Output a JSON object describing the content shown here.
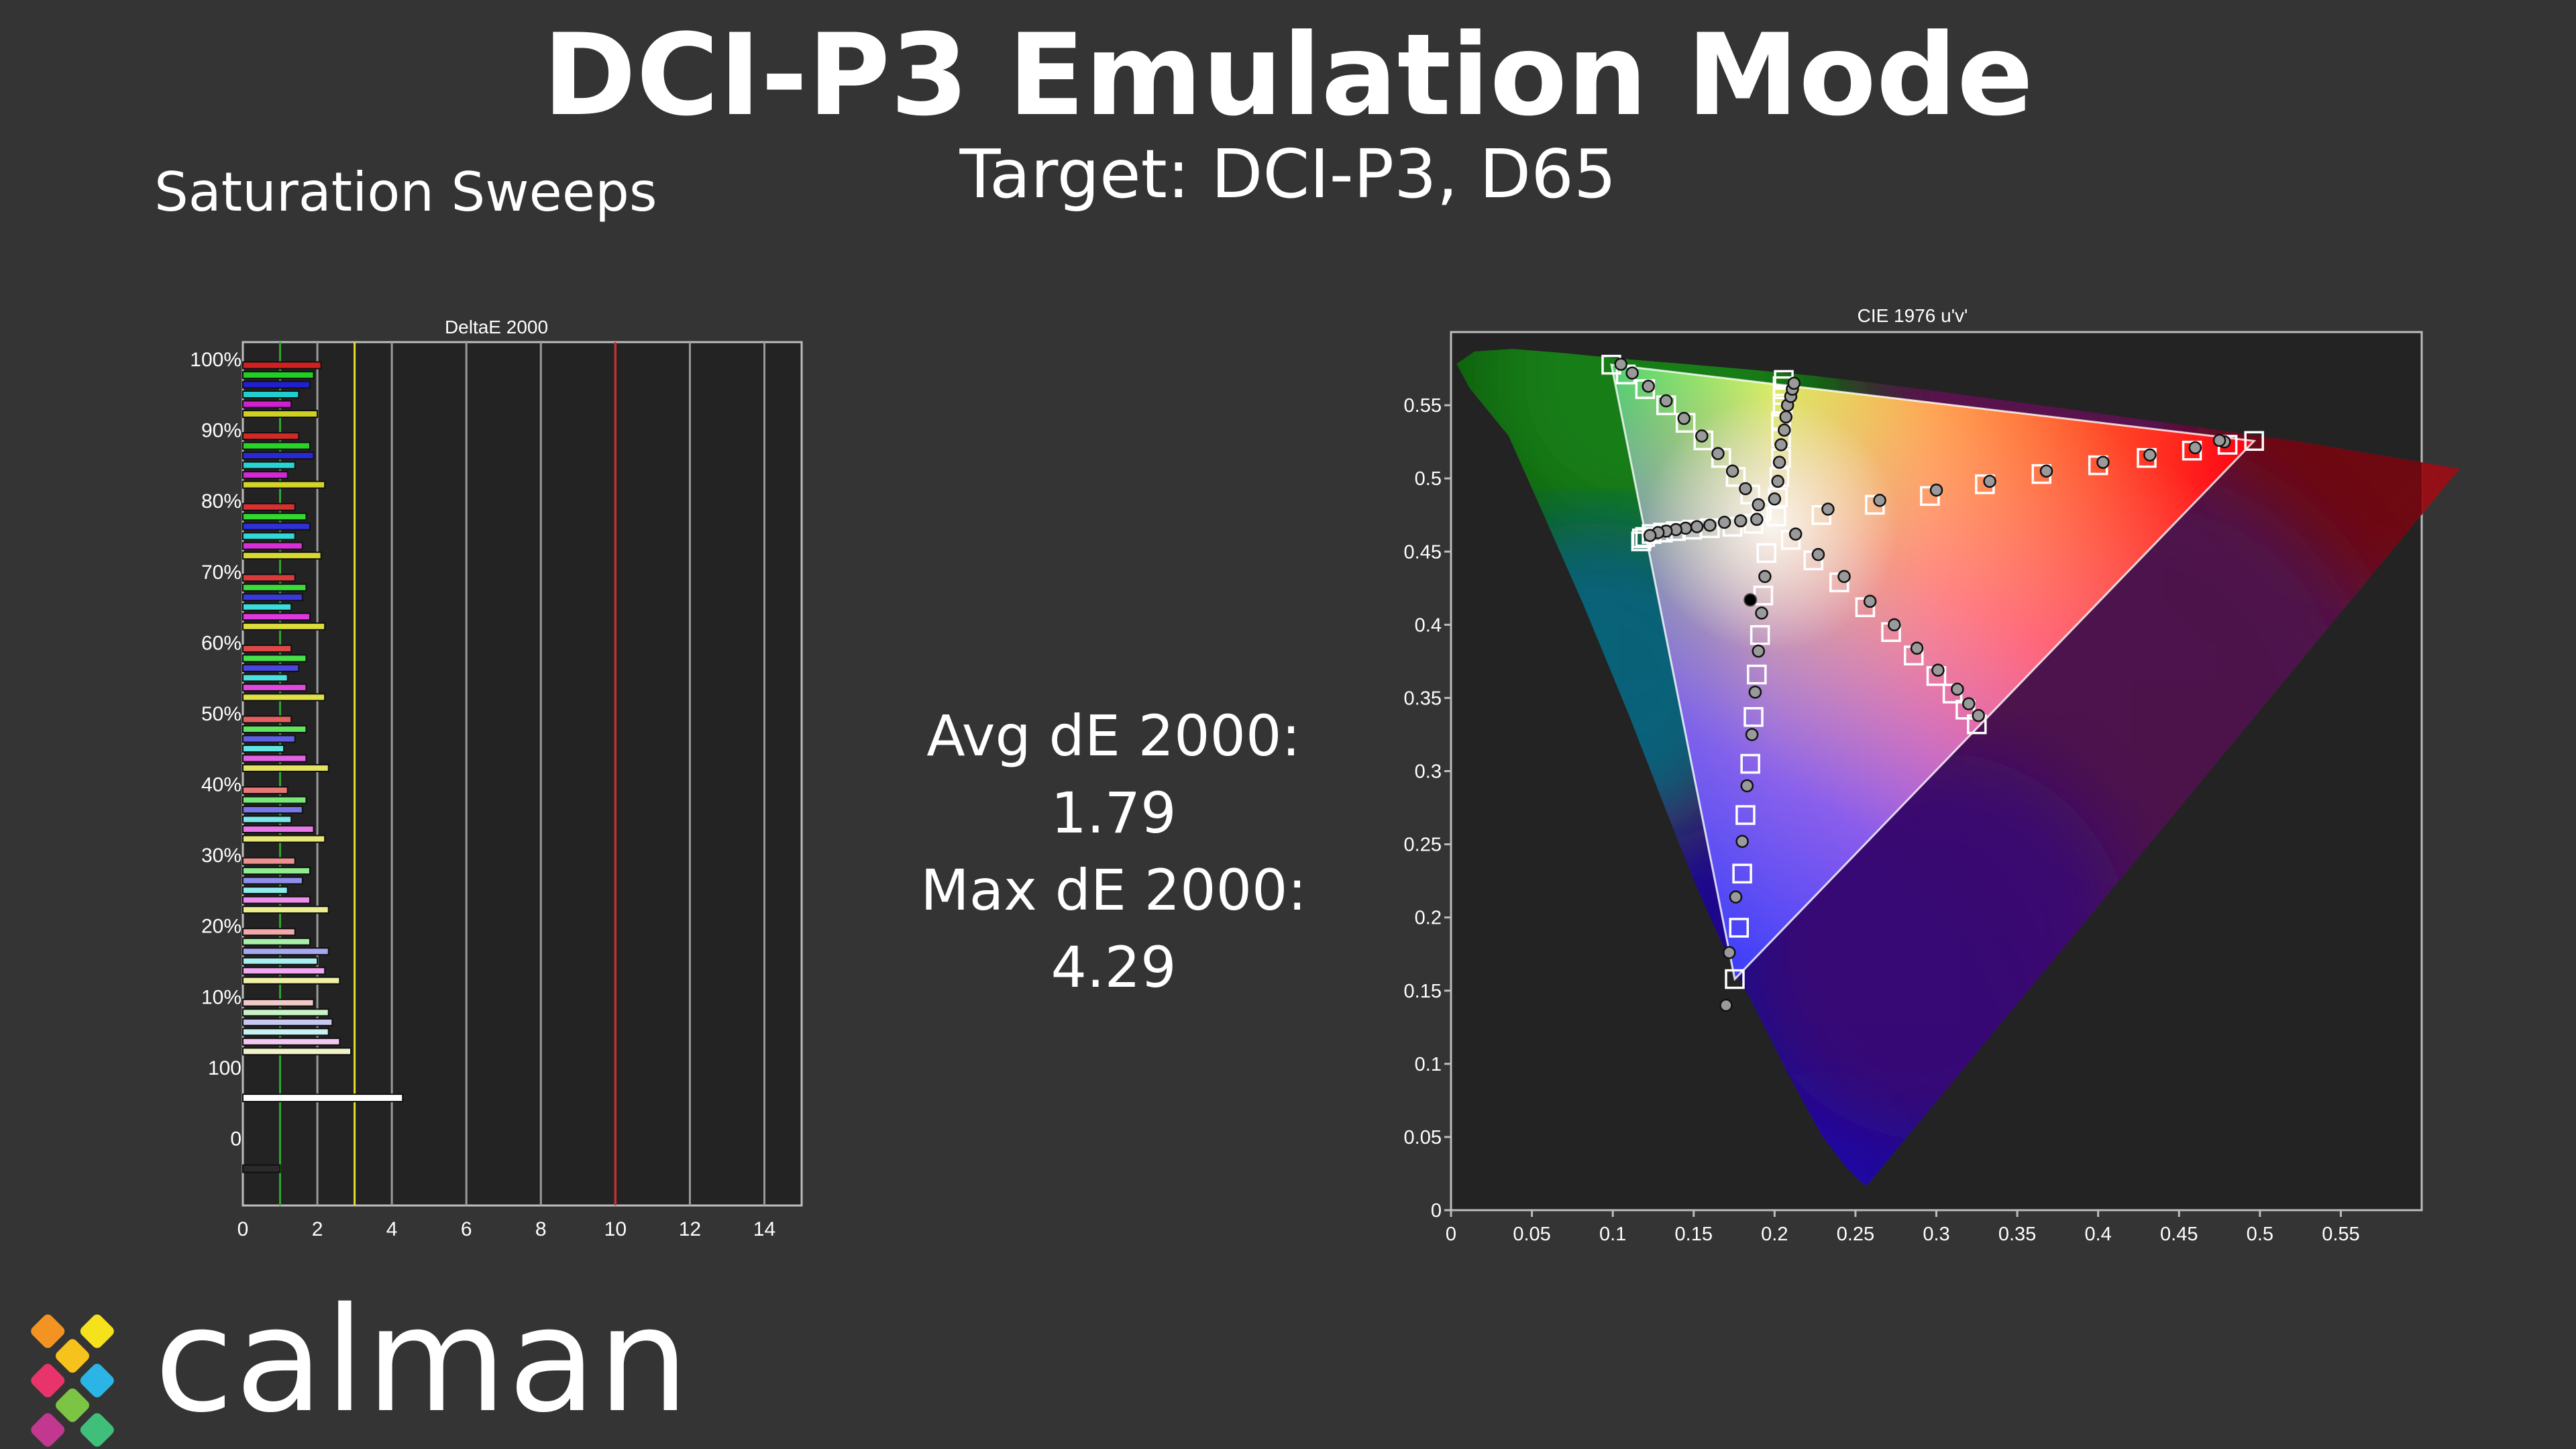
{
  "header": {
    "title": "DCI-P3 Emulation Mode",
    "subtitle": "Target: DCI-P3, D65",
    "section": "Saturation Sweeps"
  },
  "stats": {
    "avg": "Avg dE 2000: 1.79",
    "max": "Max dE 2000: 4.29"
  },
  "logo": {
    "text": "calman"
  },
  "colors": {
    "background": "#343434",
    "plot_bg": "#232323",
    "threshold_green": "#2fa82f",
    "threshold_yellow": "#e6dc2a",
    "threshold_red": "#d22a2a"
  },
  "chart_data": [
    {
      "type": "bar",
      "orientation": "horizontal",
      "title": "DeltaE 2000",
      "xlim": [
        0,
        15
      ],
      "xticks": [
        0,
        2,
        4,
        6,
        8,
        10,
        12,
        14
      ],
      "thresholds": [
        1,
        3,
        10
      ],
      "groups": [
        {
          "label": "0",
          "values": [
            {
              "color": "#2a2a2a",
              "value": 1.0
            }
          ]
        },
        {
          "label": "100",
          "values": [
            {
              "color": "#ffffff",
              "value": 4.29
            }
          ]
        },
        {
          "label": "10%",
          "values": [
            {
              "color": "#f2c8c8",
              "value": 1.9
            },
            {
              "color": "#c8f2c8",
              "value": 2.3
            },
            {
              "color": "#c8c8f2",
              "value": 2.4
            },
            {
              "color": "#c8f2f2",
              "value": 2.3
            },
            {
              "color": "#f2c8f2",
              "value": 2.6
            },
            {
              "color": "#f2f2c8",
              "value": 2.9
            }
          ]
        },
        {
          "label": "20%",
          "values": [
            {
              "color": "#f0a8a8",
              "value": 1.4
            },
            {
              "color": "#a8f0a8",
              "value": 1.8
            },
            {
              "color": "#a8a8f0",
              "value": 2.3
            },
            {
              "color": "#a8f0f0",
              "value": 2.0
            },
            {
              "color": "#f0a8f0",
              "value": 2.2
            },
            {
              "color": "#f0f0a8",
              "value": 2.6
            }
          ]
        },
        {
          "label": "30%",
          "values": [
            {
              "color": "#ec9090",
              "value": 1.4
            },
            {
              "color": "#90ec90",
              "value": 1.8
            },
            {
              "color": "#9090ec",
              "value": 1.6
            },
            {
              "color": "#90ecec",
              "value": 1.2
            },
            {
              "color": "#ec90ec",
              "value": 1.8
            },
            {
              "color": "#ecec90",
              "value": 2.3
            }
          ]
        },
        {
          "label": "40%",
          "values": [
            {
              "color": "#e87878",
              "value": 1.2
            },
            {
              "color": "#78e878",
              "value": 1.7
            },
            {
              "color": "#7878e8",
              "value": 1.6
            },
            {
              "color": "#78e8e8",
              "value": 1.3
            },
            {
              "color": "#e878e8",
              "value": 1.9
            },
            {
              "color": "#e8e878",
              "value": 2.2
            }
          ]
        },
        {
          "label": "50%",
          "values": [
            {
              "color": "#e46060",
              "value": 1.3
            },
            {
              "color": "#60e460",
              "value": 1.7
            },
            {
              "color": "#6060e4",
              "value": 1.4
            },
            {
              "color": "#60e4e4",
              "value": 1.1
            },
            {
              "color": "#e460e4",
              "value": 1.7
            },
            {
              "color": "#e4e460",
              "value": 2.3
            }
          ]
        },
        {
          "label": "60%",
          "values": [
            {
              "color": "#e04848",
              "value": 1.3
            },
            {
              "color": "#48e048",
              "value": 1.7
            },
            {
              "color": "#4848e0",
              "value": 1.5
            },
            {
              "color": "#48e0e0",
              "value": 1.2
            },
            {
              "color": "#e048e0",
              "value": 1.7
            },
            {
              "color": "#e0e048",
              "value": 2.2
            }
          ]
        },
        {
          "label": "70%",
          "values": [
            {
              "color": "#dc3a3a",
              "value": 1.4
            },
            {
              "color": "#3adc3a",
              "value": 1.7
            },
            {
              "color": "#3a3adc",
              "value": 1.6
            },
            {
              "color": "#3adcdc",
              "value": 1.3
            },
            {
              "color": "#dc3adc",
              "value": 1.8
            },
            {
              "color": "#dcdc3a",
              "value": 2.2
            }
          ]
        },
        {
          "label": "80%",
          "values": [
            {
              "color": "#d83030",
              "value": 1.4
            },
            {
              "color": "#30d830",
              "value": 1.7
            },
            {
              "color": "#3030d8",
              "value": 1.8
            },
            {
              "color": "#30d8d8",
              "value": 1.4
            },
            {
              "color": "#d830d8",
              "value": 1.6
            },
            {
              "color": "#d8d830",
              "value": 2.1
            }
          ]
        },
        {
          "label": "90%",
          "values": [
            {
              "color": "#d42828",
              "value": 1.5
            },
            {
              "color": "#28d428",
              "value": 1.8
            },
            {
              "color": "#2828d4",
              "value": 1.9
            },
            {
              "color": "#28d4d4",
              "value": 1.4
            },
            {
              "color": "#d428d4",
              "value": 1.2
            },
            {
              "color": "#d4d428",
              "value": 2.2
            }
          ]
        },
        {
          "label": "100%",
          "values": [
            {
              "color": "#d02020",
              "value": 2.1
            },
            {
              "color": "#20d020",
              "value": 1.9
            },
            {
              "color": "#2020d0",
              "value": 1.8
            },
            {
              "color": "#20d0d0",
              "value": 1.5
            },
            {
              "color": "#d020d0",
              "value": 1.3
            },
            {
              "color": "#d0d020",
              "value": 2.0
            }
          ]
        }
      ]
    },
    {
      "type": "scatter",
      "title": "CIE 1976 u'v'",
      "xlim": [
        0,
        0.6
      ],
      "ylim": [
        0,
        0.6
      ],
      "xticks": [
        0,
        0.05,
        0.1,
        0.15,
        0.2,
        0.25,
        0.3,
        0.35,
        0.4,
        0.45,
        0.5,
        0.55
      ],
      "yticks": [
        0,
        0.05,
        0.1,
        0.15,
        0.2,
        0.25,
        0.3,
        0.35,
        0.4,
        0.45,
        0.5,
        0.55
      ],
      "white_point": [
        0.1978,
        0.4683
      ],
      "measured_white": [
        0.185,
        0.417
      ],
      "primaries": {
        "red": [
          0.4964,
          0.5256
        ],
        "green": [
          0.0991,
          0.5777
        ],
        "blue": [
          0.1754,
          0.1579
        ]
      },
      "sweeps": [
        {
          "name": "red",
          "targets": [
            [
              0.229,
              0.475
            ],
            [
              0.262,
              0.482
            ],
            [
              0.296,
              0.488
            ],
            [
              0.33,
              0.496
            ],
            [
              0.365,
              0.503
            ],
            [
              0.4,
              0.509
            ],
            [
              0.43,
              0.514
            ],
            [
              0.458,
              0.519
            ],
            [
              0.48,
              0.523
            ],
            [
              0.4964,
              0.5256
            ]
          ],
          "measured": [
            [
              0.233,
              0.479
            ],
            [
              0.265,
              0.485
            ],
            [
              0.3,
              0.492
            ],
            [
              0.333,
              0.498
            ],
            [
              0.368,
              0.505
            ],
            [
              0.403,
              0.511
            ],
            [
              0.432,
              0.516
            ],
            [
              0.46,
              0.521
            ],
            [
              0.478,
              0.525
            ],
            [
              0.475,
              0.526
            ]
          ]
        },
        {
          "name": "green",
          "targets": [
            [
              0.192,
              0.478
            ],
            [
              0.185,
              0.489
            ],
            [
              0.176,
              0.501
            ],
            [
              0.167,
              0.514
            ],
            [
              0.156,
              0.526
            ],
            [
              0.145,
              0.538
            ],
            [
              0.133,
              0.55
            ],
            [
              0.12,
              0.561
            ],
            [
              0.108,
              0.571
            ],
            [
              0.0991,
              0.5777
            ]
          ],
          "measured": [
            [
              0.19,
              0.482
            ],
            [
              0.182,
              0.493
            ],
            [
              0.174,
              0.505
            ],
            [
              0.165,
              0.517
            ],
            [
              0.155,
              0.529
            ],
            [
              0.144,
              0.541
            ],
            [
              0.133,
              0.553
            ],
            [
              0.122,
              0.563
            ],
            [
              0.112,
              0.572
            ],
            [
              0.105,
              0.578
            ]
          ]
        },
        {
          "name": "blue",
          "targets": [
            [
              0.195,
              0.449
            ],
            [
              0.193,
              0.42
            ],
            [
              0.191,
              0.393
            ],
            [
              0.189,
              0.366
            ],
            [
              0.187,
              0.337
            ],
            [
              0.185,
              0.305
            ],
            [
              0.182,
              0.27
            ],
            [
              0.18,
              0.23
            ],
            [
              0.178,
              0.193
            ],
            [
              0.1754,
              0.1579
            ]
          ],
          "measured": [
            [
              0.194,
              0.433
            ],
            [
              0.192,
              0.408
            ],
            [
              0.19,
              0.382
            ],
            [
              0.188,
              0.354
            ],
            [
              0.186,
              0.325
            ],
            [
              0.183,
              0.29
            ],
            [
              0.18,
              0.252
            ],
            [
              0.176,
              0.214
            ],
            [
              0.172,
              0.176
            ],
            [
              0.17,
              0.14
            ]
          ]
        },
        {
          "name": "cyan",
          "targets": [
            [
              0.187,
              0.469
            ],
            [
              0.174,
              0.467
            ],
            [
              0.16,
              0.466
            ],
            [
              0.149,
              0.465
            ],
            [
              0.139,
              0.464
            ],
            [
              0.131,
              0.463
            ],
            [
              0.124,
              0.462
            ],
            [
              0.12,
              0.46
            ],
            [
              0.118,
              0.459
            ],
            [
              0.1175,
              0.457
            ]
          ],
          "measured": [
            [
              0.189,
              0.472
            ],
            [
              0.179,
              0.471
            ],
            [
              0.169,
              0.47
            ],
            [
              0.16,
              0.468
            ],
            [
              0.152,
              0.467
            ],
            [
              0.145,
              0.466
            ],
            [
              0.139,
              0.465
            ],
            [
              0.133,
              0.464
            ],
            [
              0.128,
              0.463
            ],
            [
              0.123,
              0.461
            ]
          ]
        },
        {
          "name": "magenta",
          "targets": [
            [
              0.21,
              0.458
            ],
            [
              0.224,
              0.444
            ],
            [
              0.24,
              0.429
            ],
            [
              0.256,
              0.412
            ],
            [
              0.272,
              0.395
            ],
            [
              0.286,
              0.379
            ],
            [
              0.3,
              0.365
            ],
            [
              0.31,
              0.353
            ],
            [
              0.318,
              0.342
            ],
            [
              0.325,
              0.332
            ]
          ],
          "measured": [
            [
              0.213,
              0.462
            ],
            [
              0.227,
              0.448
            ],
            [
              0.243,
              0.433
            ],
            [
              0.259,
              0.416
            ],
            [
              0.274,
              0.4
            ],
            [
              0.288,
              0.384
            ],
            [
              0.301,
              0.369
            ],
            [
              0.313,
              0.356
            ],
            [
              0.32,
              0.346
            ],
            [
              0.326,
              0.338
            ]
          ]
        },
        {
          "name": "yellow",
          "targets": [
            [
              0.201,
              0.474
            ],
            [
              0.202,
              0.487
            ],
            [
              0.203,
              0.501
            ],
            [
              0.204,
              0.514
            ],
            [
              0.204,
              0.528
            ],
            [
              0.204,
              0.539
            ],
            [
              0.205,
              0.549
            ],
            [
              0.205,
              0.557
            ],
            [
              0.205,
              0.563
            ],
            [
              0.2057,
              0.5673
            ]
          ],
          "measured": [
            [
              0.2,
              0.486
            ],
            [
              0.202,
              0.498
            ],
            [
              0.203,
              0.511
            ],
            [
              0.204,
              0.523
            ],
            [
              0.206,
              0.533
            ],
            [
              0.207,
              0.542
            ],
            [
              0.208,
              0.55
            ],
            [
              0.21,
              0.556
            ],
            [
              0.211,
              0.561
            ],
            [
              0.212,
              0.565
            ]
          ]
        }
      ]
    }
  ]
}
